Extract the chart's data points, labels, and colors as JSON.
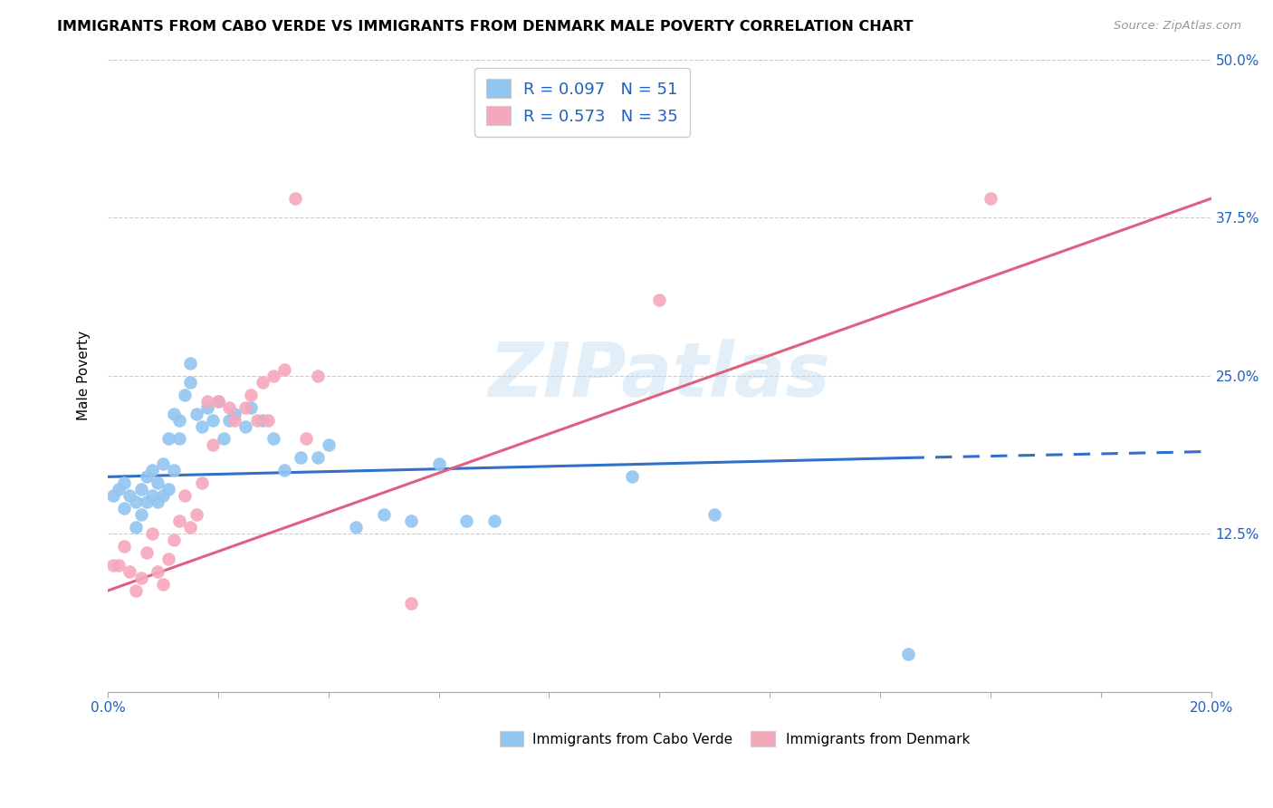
{
  "title": "IMMIGRANTS FROM CABO VERDE VS IMMIGRANTS FROM DENMARK MALE POVERTY CORRELATION CHART",
  "source": "Source: ZipAtlas.com",
  "ylabel": "Male Poverty",
  "xlim": [
    0.0,
    0.2
  ],
  "ylim": [
    0.0,
    0.5
  ],
  "legend_label1": "Immigrants from Cabo Verde",
  "legend_label2": "Immigrants from Denmark",
  "R1": 0.097,
  "N1": 51,
  "R2": 0.573,
  "N2": 35,
  "color1": "#92c5f0",
  "color2": "#f5a8bc",
  "line1_color": "#3070c8",
  "line2_color": "#e06080",
  "watermark": "ZIPatlas",
  "cabo_verde_x": [
    0.001,
    0.002,
    0.003,
    0.003,
    0.004,
    0.005,
    0.005,
    0.006,
    0.006,
    0.007,
    0.007,
    0.008,
    0.008,
    0.009,
    0.009,
    0.01,
    0.01,
    0.011,
    0.011,
    0.012,
    0.012,
    0.013,
    0.013,
    0.014,
    0.015,
    0.015,
    0.016,
    0.017,
    0.018,
    0.019,
    0.02,
    0.021,
    0.022,
    0.023,
    0.025,
    0.026,
    0.028,
    0.03,
    0.032,
    0.035,
    0.038,
    0.04,
    0.045,
    0.05,
    0.055,
    0.06,
    0.065,
    0.07,
    0.095,
    0.11,
    0.145
  ],
  "cabo_verde_y": [
    0.155,
    0.16,
    0.145,
    0.165,
    0.155,
    0.13,
    0.15,
    0.14,
    0.16,
    0.15,
    0.17,
    0.155,
    0.175,
    0.15,
    0.165,
    0.155,
    0.18,
    0.2,
    0.16,
    0.175,
    0.22,
    0.2,
    0.215,
    0.235,
    0.245,
    0.26,
    0.22,
    0.21,
    0.225,
    0.215,
    0.23,
    0.2,
    0.215,
    0.22,
    0.21,
    0.225,
    0.215,
    0.2,
    0.175,
    0.185,
    0.185,
    0.195,
    0.13,
    0.14,
    0.135,
    0.18,
    0.135,
    0.135,
    0.17,
    0.14,
    0.03
  ],
  "denmark_x": [
    0.001,
    0.002,
    0.003,
    0.004,
    0.005,
    0.006,
    0.007,
    0.008,
    0.009,
    0.01,
    0.011,
    0.012,
    0.013,
    0.014,
    0.015,
    0.016,
    0.017,
    0.018,
    0.019,
    0.02,
    0.022,
    0.023,
    0.025,
    0.026,
    0.027,
    0.028,
    0.029,
    0.03,
    0.032,
    0.034,
    0.036,
    0.038,
    0.055,
    0.1,
    0.16
  ],
  "denmark_y": [
    0.1,
    0.1,
    0.115,
    0.095,
    0.08,
    0.09,
    0.11,
    0.125,
    0.095,
    0.085,
    0.105,
    0.12,
    0.135,
    0.155,
    0.13,
    0.14,
    0.165,
    0.23,
    0.195,
    0.23,
    0.225,
    0.215,
    0.225,
    0.235,
    0.215,
    0.245,
    0.215,
    0.25,
    0.255,
    0.39,
    0.2,
    0.25,
    0.07,
    0.31,
    0.39
  ],
  "line1_x_start": 0.0,
  "line1_x_solid_end": 0.145,
  "line1_x_dash_end": 0.2,
  "line2_x_start": 0.0,
  "line2_x_end": 0.2,
  "line1_y_at_0": 0.17,
  "line1_y_at_145": 0.185,
  "line1_y_at_200": 0.19,
  "line2_y_at_0": 0.08,
  "line2_y_at_200": 0.39
}
